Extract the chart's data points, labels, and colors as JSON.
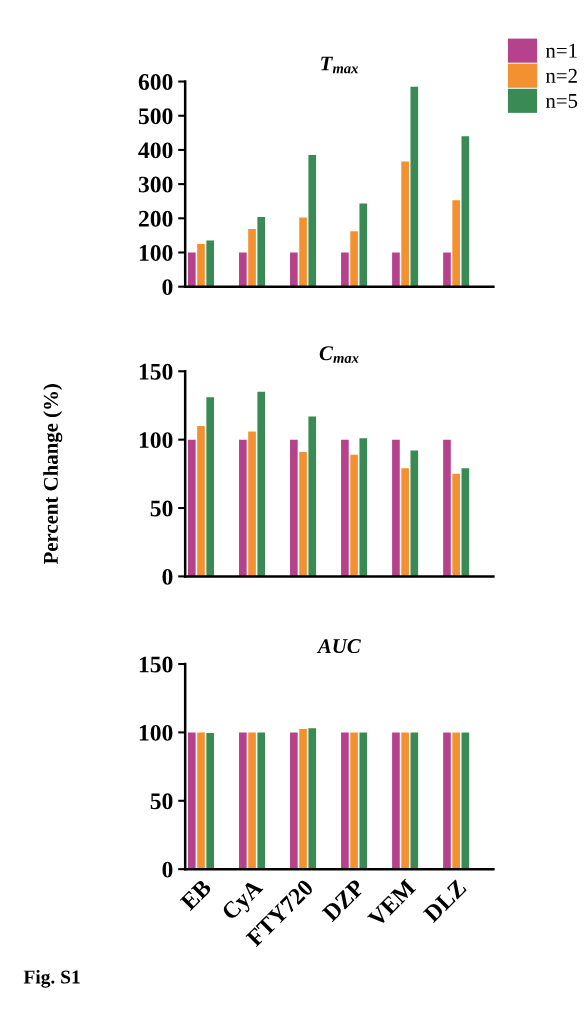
{
  "chart_data": [
    {
      "type": "bar",
      "title": "T$_{max}$",
      "categories": [
        null,
        null,
        null,
        null,
        null,
        null
      ],
      "ylim": [
        0,
        600
      ],
      "yticks": [
        0,
        100,
        200,
        300,
        400,
        500,
        600
      ],
      "tick_labels": "y",
      "legend": "top right",
      "grid": false,
      "series": [
        {
          "name": "n=1",
          "color": "#b5428a",
          "values": [
            100,
            100,
            100,
            100,
            100,
            100
          ]
        },
        {
          "name": "n=2",
          "color": "#f39130",
          "values": [
            125,
            169,
            202,
            162,
            366,
            253
          ]
        },
        {
          "name": "n=5",
          "color": "#3a8a55",
          "values": [
            135,
            204,
            385,
            243,
            585,
            440
          ]
        }
      ]
    },
    {
      "type": "bar",
      "title": "C$_{max}$",
      "ylabel": "Percent Change (%)",
      "categories": [
        null,
        null,
        null,
        null,
        null,
        null
      ],
      "ylim": [
        0,
        150
      ],
      "yticks": [
        0,
        50,
        100,
        150
      ],
      "tick_labels": "y",
      "grid": false,
      "series": [
        {
          "color": "#b5428a",
          "values": [
            100,
            100,
            100,
            100,
            100,
            100
          ]
        },
        {
          "color": "#f39130",
          "values": [
            110,
            106,
            91,
            89,
            79,
            75
          ]
        },
        {
          "color": "#3a8a55",
          "values": [
            131,
            135,
            117,
            101,
            92,
            79
          ]
        }
      ]
    },
    {
      "type": "bar",
      "title": "AUC",
      "categories": [
        "EB",
        "CyA",
        "FTY720",
        "DZP",
        "VEM",
        "DLZ"
      ],
      "ylim": [
        0,
        150
      ],
      "yticks": [
        0,
        50,
        100,
        150
      ],
      "grid": false,
      "annotations": [
        "Fig. S1"
      ],
      "series": [
        {
          "color": "#b5428a",
          "values": [
            100,
            100,
            100,
            100,
            100,
            100
          ]
        },
        {
          "color": "#f39130",
          "values": [
            100,
            100,
            102.5,
            100,
            100,
            100
          ]
        },
        {
          "color": "#3a8a55",
          "values": [
            99.5,
            100,
            103,
            100,
            100,
            100
          ]
        }
      ]
    }
  ]
}
